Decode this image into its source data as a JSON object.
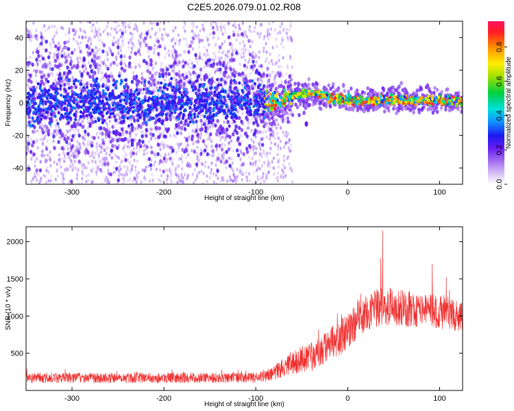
{
  "title": "C2E5.2026.079.01.02.R08",
  "chart_data": [
    {
      "type": "heatmap",
      "xlabel": "Height of straight line (km)",
      "ylabel": "Frequency (Hz)",
      "xlim": [
        -350,
        125
      ],
      "ylim": [
        -50,
        50
      ],
      "x_ticks": [
        -300,
        -200,
        -100,
        0,
        100
      ],
      "y_ticks": [
        -40,
        -20,
        0,
        20,
        40
      ],
      "x_tick_labels": [
        "-300",
        "-200",
        "-100",
        "0",
        "100"
      ],
      "y_tick_labels": [
        "-40",
        "-20",
        "0",
        "20",
        "40"
      ],
      "colorbar": {
        "label": "Normalized spectral amplitude",
        "range": [
          0,
          0.95
        ],
        "ticks": [
          0,
          0.2,
          0.4,
          0.6,
          0.8
        ],
        "tick_labels": [
          "0.0",
          "0.2",
          "0.4",
          "0.6",
          "0.8"
        ]
      },
      "ridge": [
        {
          "x": -350,
          "freq": 0,
          "spread": 8
        },
        {
          "x": -100,
          "freq": 0,
          "spread": 7
        },
        {
          "x": -85,
          "freq": 0,
          "spread": 3
        },
        {
          "x": -70,
          "freq": 2,
          "spread": 2.5
        },
        {
          "x": -55,
          "freq": 5,
          "spread": 2
        },
        {
          "x": -40,
          "freq": 6,
          "spread": 1.5
        },
        {
          "x": -25,
          "freq": 4,
          "spread": 1.5
        },
        {
          "x": -10,
          "freq": 2,
          "spread": 1.5
        },
        {
          "x": 0,
          "freq": 2,
          "spread": 1.5
        },
        {
          "x": 20,
          "freq": 1,
          "spread": 1.5
        },
        {
          "x": 50,
          "freq": 2,
          "spread": 1.5
        },
        {
          "x": 80,
          "freq": 1.5,
          "spread": 1.5
        },
        {
          "x": 125,
          "freq": 1,
          "spread": 1.5
        }
      ]
    },
    {
      "type": "line",
      "color": "#f03030",
      "xlabel": "Height of straight line (km)",
      "ylabel": "SNR (10 * v/v)",
      "xlim": [
        -350,
        125
      ],
      "ylim": [
        0,
        2200
      ],
      "x_ticks": [
        -300,
        -200,
        -100,
        0,
        100
      ],
      "y_ticks": [
        500,
        1000,
        1500,
        2000
      ],
      "x_tick_labels": [
        "-300",
        "-200",
        "-100",
        "0",
        "100"
      ],
      "y_tick_labels": [
        "500",
        "1000",
        "1500",
        "2000"
      ],
      "trend": [
        {
          "x": -350,
          "mean": 170,
          "noise": 70
        },
        {
          "x": -100,
          "mean": 170,
          "noise": 70
        },
        {
          "x": -80,
          "mean": 230,
          "noise": 100
        },
        {
          "x": -60,
          "mean": 380,
          "noise": 160
        },
        {
          "x": -40,
          "mean": 450,
          "noise": 200
        },
        {
          "x": -20,
          "mean": 600,
          "noise": 230
        },
        {
          "x": 0,
          "mean": 800,
          "noise": 250
        },
        {
          "x": 20,
          "mean": 1050,
          "noise": 260
        },
        {
          "x": 40,
          "mean": 1130,
          "noise": 260
        },
        {
          "x": 80,
          "mean": 1080,
          "noise": 240
        },
        {
          "x": 125,
          "mean": 1020,
          "noise": 230
        }
      ],
      "peaks": [
        {
          "x": 38,
          "y": 2150
        },
        {
          "x": 36,
          "y": 1780
        },
        {
          "x": 92,
          "y": 1700
        }
      ]
    }
  ]
}
